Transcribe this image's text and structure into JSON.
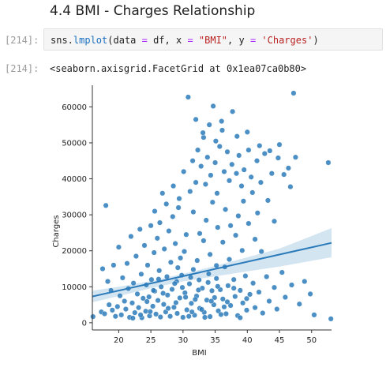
{
  "section": {
    "heading": "4.4 BMI - Charges Relationship"
  },
  "cell_input": {
    "prompt": "[214]:",
    "code": {
      "p1": "sns.",
      "fn": "lmplot",
      "p2": "(data ",
      "eq1": "=",
      "p3": " df, x ",
      "eq2": "=",
      "sp1": " ",
      "s1": "\"BMI\"",
      "p4": ", y ",
      "eq3": "=",
      "sp2": " ",
      "s2": "'Charges'",
      "p5": ")"
    }
  },
  "cell_output": {
    "prompt": "[214]:",
    "text": "<seaborn.axisgrid.FacetGrid at 0x1ea07ca0b80>"
  },
  "colors": {
    "point": "#2b7bba",
    "regression_line": "#2b7bba",
    "confidence_band": "#b7d3ea"
  },
  "chart_data": {
    "type": "scatter",
    "xlabel": "BMI",
    "ylabel": "Charges",
    "xlim": [
      15.9,
      53.1
    ],
    "ylim": [
      -2000,
      66000
    ],
    "xticks": [
      20,
      25,
      30,
      35,
      40,
      45,
      50
    ],
    "yticks": [
      0,
      10000,
      20000,
      30000,
      40000,
      50000,
      60000
    ],
    "xtick_labels": [
      "20",
      "25",
      "30",
      "35",
      "40",
      "45",
      "50"
    ],
    "ytick_labels": [
      "0",
      "10000",
      "20000",
      "30000",
      "40000",
      "50000",
      "60000"
    ],
    "regression": {
      "x": [
        15.9,
        53.1
      ],
      "y": [
        7300,
        22200
      ]
    },
    "confidence_band": {
      "x": [
        15.9,
        20,
        25,
        30,
        35,
        40,
        45,
        53.1
      ],
      "lower": [
        5700,
        7400,
        9600,
        11500,
        12900,
        14300,
        15600,
        18200
      ],
      "upper": [
        8900,
        10000,
        11600,
        13600,
        15800,
        18200,
        20600,
        26300
      ]
    },
    "points": [
      [
        16.0,
        1700
      ],
      [
        17.3,
        3000
      ],
      [
        17.5,
        15000
      ],
      [
        17.8,
        2500
      ],
      [
        18.0,
        32600
      ],
      [
        18.3,
        11500
      ],
      [
        18.5,
        5000
      ],
      [
        18.8,
        9000
      ],
      [
        19.0,
        3500
      ],
      [
        19.2,
        16000
      ],
      [
        19.5,
        1800
      ],
      [
        19.8,
        4500
      ],
      [
        20.0,
        21000
      ],
      [
        20.2,
        7500
      ],
      [
        20.4,
        2200
      ],
      [
        20.6,
        12500
      ],
      [
        20.9,
        6000
      ],
      [
        21.1,
        3800
      ],
      [
        21.3,
        16500
      ],
      [
        21.5,
        9500
      ],
      [
        21.7,
        1500
      ],
      [
        21.9,
        24000
      ],
      [
        22.1,
        5500
      ],
      [
        22.3,
        11000
      ],
      [
        22.5,
        2800
      ],
      [
        22.7,
        18500
      ],
      [
        22.9,
        8000
      ],
      [
        23.1,
        4200
      ],
      [
        23.3,
        26000
      ],
      [
        23.5,
        13500
      ],
      [
        23.6,
        1400
      ],
      [
        23.8,
        6800
      ],
      [
        24.0,
        21500
      ],
      [
        24.2,
        3200
      ],
      [
        24.3,
        10500
      ],
      [
        24.5,
        16000
      ],
      [
        24.7,
        7200
      ],
      [
        24.8,
        1900
      ],
      [
        25.0,
        27000
      ],
      [
        25.1,
        12000
      ],
      [
        25.3,
        4600
      ],
      [
        25.5,
        19500
      ],
      [
        25.6,
        8800
      ],
      [
        25.8,
        2400
      ],
      [
        26.0,
        23500
      ],
      [
        26.1,
        6200
      ],
      [
        26.3,
        14500
      ],
      [
        26.5,
        1600
      ],
      [
        26.6,
        10000
      ],
      [
        26.8,
        36000
      ],
      [
        27.0,
        5100
      ],
      [
        27.1,
        20500
      ],
      [
        27.3,
        3000
      ],
      [
        27.5,
        12800
      ],
      [
        27.6,
        7700
      ],
      [
        27.8,
        25500
      ],
      [
        28.0,
        1800
      ],
      [
        28.1,
        16800
      ],
      [
        28.3,
        9300
      ],
      [
        28.5,
        38000
      ],
      [
        28.6,
        4300
      ],
      [
        28.8,
        22000
      ],
      [
        29.0,
        11500
      ],
      [
        29.1,
        2600
      ],
      [
        29.3,
        32000
      ],
      [
        29.5,
        6900
      ],
      [
        29.6,
        18000
      ],
      [
        29.8,
        13200
      ],
      [
        30.0,
        1500
      ],
      [
        30.1,
        42000
      ],
      [
        30.3,
        8300
      ],
      [
        30.5,
        24500
      ],
      [
        30.6,
        3600
      ],
      [
        30.8,
        62700
      ],
      [
        31.0,
        10800
      ],
      [
        31.1,
        36500
      ],
      [
        31.3,
        5400
      ],
      [
        31.5,
        45000
      ],
      [
        31.6,
        14800
      ],
      [
        31.8,
        2100
      ],
      [
        32.0,
        39000
      ],
      [
        32.1,
        7400
      ],
      [
        32.3,
        48000
      ],
      [
        32.5,
        11900
      ],
      [
        32.6,
        4000
      ],
      [
        32.8,
        43500
      ],
      [
        33.0,
        9600
      ],
      [
        33.2,
        51500
      ],
      [
        33.3,
        2900
      ],
      [
        33.5,
        38500
      ],
      [
        33.7,
        6300
      ],
      [
        33.8,
        46000
      ],
      [
        34.0,
        13600
      ],
      [
        34.2,
        1700
      ],
      [
        34.3,
        41000
      ],
      [
        34.5,
        8900
      ],
      [
        34.7,
        60200
      ],
      [
        34.8,
        5000
      ],
      [
        35.0,
        44500
      ],
      [
        35.2,
        12300
      ],
      [
        35.3,
        36000
      ],
      [
        35.5,
        3300
      ],
      [
        35.7,
        49000
      ],
      [
        35.8,
        9200
      ],
      [
        36.0,
        56000
      ],
      [
        36.2,
        6600
      ],
      [
        36.4,
        42000
      ],
      [
        36.5,
        15500
      ],
      [
        36.7,
        2500
      ],
      [
        36.9,
        47500
      ],
      [
        37.0,
        10300
      ],
      [
        37.2,
        39500
      ],
      [
        37.4,
        4800
      ],
      [
        37.6,
        44000
      ],
      [
        37.7,
        58700
      ],
      [
        37.9,
        12000
      ],
      [
        38.1,
        7300
      ],
      [
        38.3,
        41500
      ],
      [
        38.5,
        2000
      ],
      [
        38.7,
        46500
      ],
      [
        38.9,
        9000
      ],
      [
        39.1,
        38000
      ],
      [
        39.3,
        5500
      ],
      [
        39.5,
        42500
      ],
      [
        39.7,
        13000
      ],
      [
        39.9,
        3500
      ],
      [
        40.2,
        48000
      ],
      [
        40.4,
        7900
      ],
      [
        40.6,
        40500
      ],
      [
        40.9,
        11000
      ],
      [
        41.2,
        4200
      ],
      [
        41.5,
        45000
      ],
      [
        41.8,
        8500
      ],
      [
        42.1,
        39000
      ],
      [
        42.4,
        2700
      ],
      [
        42.7,
        47000
      ],
      [
        43.0,
        12800
      ],
      [
        43.4,
        6000
      ],
      [
        43.8,
        41500
      ],
      [
        44.2,
        9800
      ],
      [
        44.6,
        3800
      ],
      [
        45.0,
        49500
      ],
      [
        45.4,
        14000
      ],
      [
        45.9,
        7100
      ],
      [
        46.4,
        43000
      ],
      [
        46.9,
        10500
      ],
      [
        47.2,
        63800
      ],
      [
        47.5,
        46000
      ],
      [
        48.1,
        5200
      ],
      [
        48.9,
        11500
      ],
      [
        49.8,
        8000
      ],
      [
        50.4,
        2200
      ],
      [
        52.6,
        44500
      ],
      [
        53.0,
        1100
      ],
      [
        22.2,
        1300
      ],
      [
        24.9,
        3100
      ],
      [
        26.9,
        8200
      ],
      [
        28.9,
        5600
      ],
      [
        29.9,
        9800
      ],
      [
        30.9,
        1800
      ],
      [
        31.9,
        6500
      ],
      [
        32.9,
        3700
      ],
      [
        33.9,
        11200
      ],
      [
        34.9,
        7000
      ],
      [
        35.9,
        2300
      ],
      [
        36.9,
        5800
      ],
      [
        37.9,
        9600
      ],
      [
        38.9,
        1400
      ],
      [
        39.9,
        6700
      ],
      [
        27.7,
        4000
      ],
      [
        28.7,
        10900
      ],
      [
        30.4,
        7100
      ],
      [
        31.4,
        3000
      ],
      [
        32.4,
        9100
      ],
      [
        33.4,
        1500
      ],
      [
        34.4,
        6000
      ],
      [
        35.4,
        10100
      ],
      [
        36.4,
        4400
      ],
      [
        26.2,
        12100
      ],
      [
        25.4,
        9000
      ],
      [
        24.4,
        5900
      ],
      [
        23.4,
        2200
      ],
      [
        29.2,
        15300
      ],
      [
        30.2,
        19800
      ],
      [
        31.2,
        12600
      ],
      [
        32.2,
        17300
      ],
      [
        33.2,
        22800
      ],
      [
        34.2,
        19000
      ],
      [
        35.2,
        15900
      ],
      [
        36.2,
        22400
      ],
      [
        37.2,
        17600
      ],
      [
        38.2,
        24300
      ],
      [
        39.2,
        20100
      ],
      [
        40.2,
        27600
      ],
      [
        41.2,
        23200
      ],
      [
        42.2,
        19800
      ],
      [
        43.2,
        34000
      ],
      [
        44.2,
        28200
      ],
      [
        41.6,
        30500
      ],
      [
        39.4,
        33800
      ],
      [
        40.8,
        36200
      ],
      [
        38.6,
        29700
      ],
      [
        37.4,
        27000
      ],
      [
        36.6,
        31500
      ],
      [
        35.4,
        26500
      ],
      [
        34.6,
        33500
      ],
      [
        33.6,
        28500
      ],
      [
        32.6,
        24800
      ],
      [
        31.6,
        30800
      ],
      [
        29.4,
        34500
      ],
      [
        28.4,
        29500
      ],
      [
        27.4,
        33000
      ],
      [
        26.4,
        27800
      ],
      [
        25.6,
        31000
      ],
      [
        33.1,
        52800
      ],
      [
        34.1,
        55000
      ],
      [
        35.1,
        50500
      ],
      [
        36.1,
        53500
      ],
      [
        32.0,
        56500
      ],
      [
        38.4,
        51800
      ],
      [
        40.0,
        53000
      ],
      [
        41.9,
        49200
      ],
      [
        43.5,
        47800
      ],
      [
        44.8,
        45800
      ],
      [
        45.7,
        41200
      ],
      [
        46.7,
        37800
      ]
    ]
  }
}
